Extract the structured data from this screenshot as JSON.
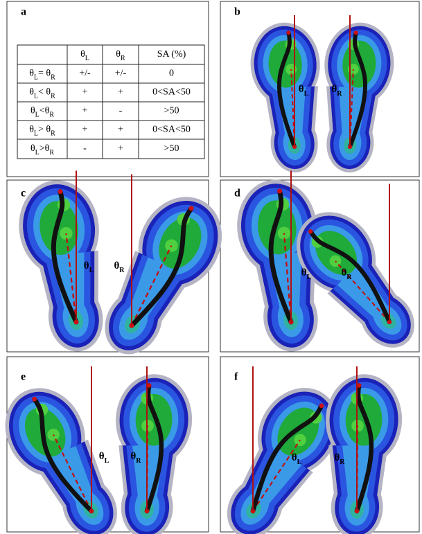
{
  "panels": [
    {
      "label": "a",
      "table": {
        "header": [
          null,
          [
            "θ",
            "L"
          ],
          [
            "θ",
            "R"
          ],
          [
            "SA (%)"
          ]
        ],
        "rows": [
          [
            [
              "θ",
              "L",
              "= θ",
              "R"
            ],
            [
              "+/-"
            ],
            [
              "+/-"
            ],
            [
              "0"
            ]
          ],
          [
            [
              "θ",
              "L",
              "< θ",
              "R"
            ],
            [
              "+"
            ],
            [
              "+"
            ],
            [
              "0<SA<50"
            ]
          ],
          [
            [
              "θ",
              "L",
              "<θ",
              "R"
            ],
            [
              "+"
            ],
            [
              "-"
            ],
            [
              ">50"
            ]
          ],
          [
            [
              "θ",
              "L",
              "> θ",
              "R"
            ],
            [
              "+"
            ],
            [
              "+"
            ],
            [
              "0<SA<50"
            ]
          ],
          [
            [
              "θ",
              "L",
              ">θ",
              "R"
            ],
            [
              "-"
            ],
            [
              "+"
            ],
            [
              ">50"
            ]
          ]
        ]
      }
    },
    {
      "label": "b",
      "theta_left": [
        "θ",
        "L"
      ],
      "theta_right": [
        "θ",
        "R"
      ]
    },
    {
      "label": "c",
      "theta_left": [
        "θ",
        "L"
      ],
      "theta_right": [
        "θ",
        "R"
      ]
    },
    {
      "label": "d",
      "theta_left": [
        "θ",
        "L"
      ],
      "theta_right": [
        "θ",
        "R"
      ]
    },
    {
      "label": "e",
      "theta_left": [
        "θ",
        "L"
      ],
      "theta_right": [
        "θ",
        "R"
      ]
    },
    {
      "label": "f",
      "theta_left": [
        "θ",
        "L"
      ],
      "theta_right": [
        "θ",
        "R"
      ]
    }
  ]
}
